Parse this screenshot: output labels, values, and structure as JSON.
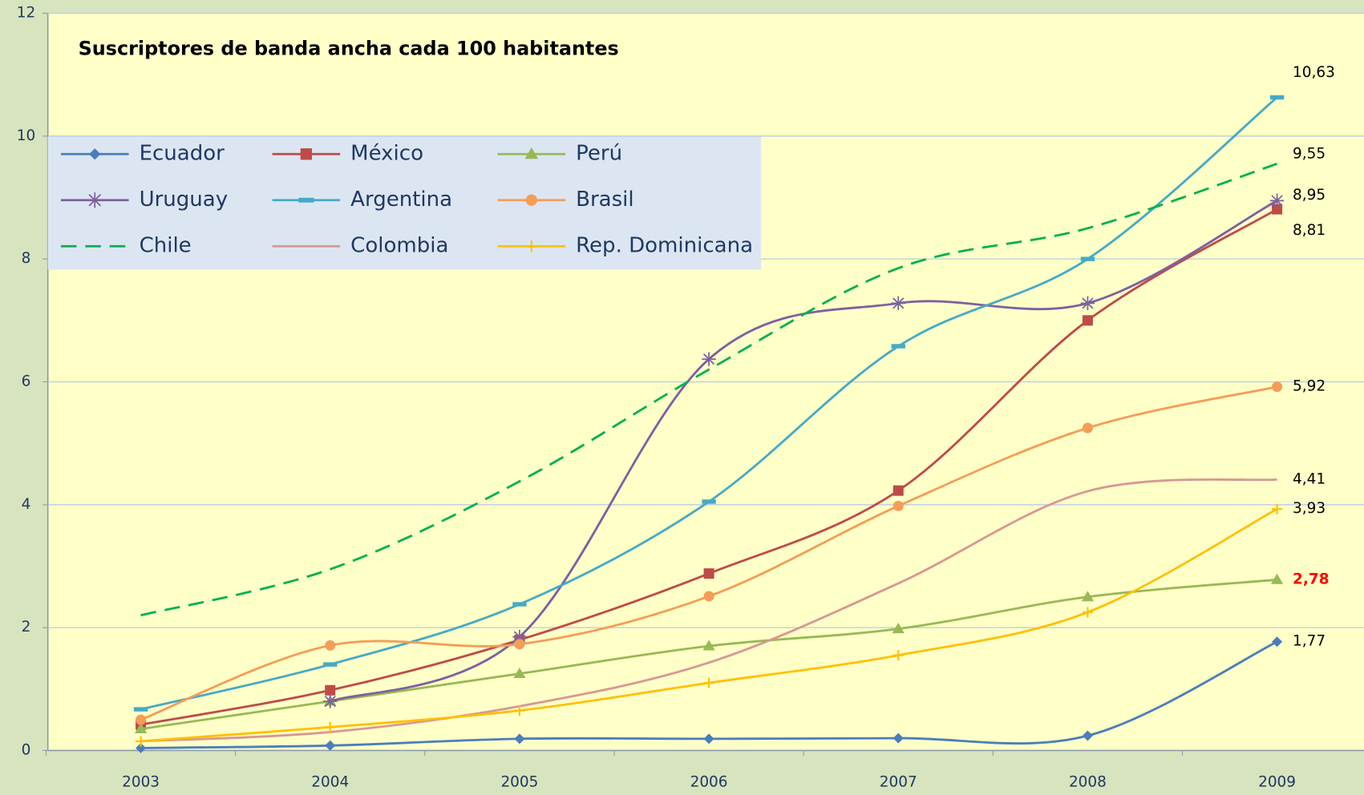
{
  "chart_data": {
    "type": "line",
    "title": "Suscriptores de banda ancha cada 100 habitantes",
    "categories": [
      "2003",
      "2004",
      "2005",
      "2006",
      "2007",
      "2008",
      "2009"
    ],
    "ylim": [
      0,
      12
    ],
    "yticks": [
      0,
      2,
      4,
      6,
      8,
      10,
      12
    ],
    "grid": true,
    "smooth": true,
    "legend": "upper left",
    "series": [
      {
        "name": "Ecuador",
        "color": "#4a7ebb",
        "marker": "diamond",
        "values": [
          0.04,
          0.08,
          0.19,
          0.19,
          0.2,
          0.24,
          1.77
        ],
        "value_labels": [
          null,
          null,
          null,
          null,
          null,
          null,
          "1,77"
        ]
      },
      {
        "name": "México",
        "color": "#be4b48",
        "marker": "square",
        "values": [
          0.42,
          0.98,
          1.8,
          2.88,
          4.23,
          7.0,
          8.81
        ],
        "value_labels": [
          null,
          null,
          null,
          null,
          null,
          null,
          "8,81"
        ]
      },
      {
        "name": "Perú",
        "color": "#98b954",
        "marker": "triangle",
        "values": [
          0.35,
          0.8,
          1.25,
          1.7,
          1.98,
          2.5,
          2.78
        ],
        "value_labels": [
          null,
          null,
          null,
          null,
          null,
          null,
          "2,78"
        ],
        "label_color": "#ff0000"
      },
      {
        "name": "Uruguay",
        "color": "#7d60a0",
        "marker": "star",
        "values": [
          null,
          0.8,
          1.85,
          6.37,
          7.28,
          7.28,
          8.95
        ],
        "value_labels": [
          null,
          null,
          null,
          null,
          null,
          null,
          "8,95"
        ]
      },
      {
        "name": "Argentina",
        "color": "#46aac5",
        "marker": "dash",
        "values": [
          0.67,
          1.4,
          2.38,
          4.05,
          6.58,
          8.0,
          10.63
        ],
        "value_labels": [
          null,
          null,
          null,
          null,
          null,
          null,
          "10,63"
        ]
      },
      {
        "name": "Brasil",
        "color": "#f59d56",
        "marker": "circle",
        "values": [
          0.5,
          1.71,
          1.73,
          2.51,
          3.98,
          5.25,
          5.92
        ],
        "value_labels": [
          null,
          null,
          null,
          null,
          null,
          null,
          "5,92"
        ]
      },
      {
        "name": "Chile",
        "color": "#00b050",
        "marker": "none",
        "dashed": true,
        "values": [
          2.2,
          2.95,
          4.38,
          6.2,
          7.85,
          8.5,
          9.55
        ],
        "value_labels": [
          null,
          null,
          null,
          null,
          null,
          null,
          "9,55"
        ]
      },
      {
        "name": "Colombia",
        "color": "#d99694",
        "marker": "none",
        "values": [
          0.15,
          0.3,
          0.72,
          1.43,
          2.72,
          4.22,
          4.41
        ],
        "value_labels": [
          null,
          null,
          null,
          null,
          null,
          null,
          "4,41"
        ]
      },
      {
        "name": "Rep. Dominicana",
        "color": "#ffc000",
        "marker": "plus",
        "values": [
          0.15,
          0.38,
          0.65,
          1.1,
          1.55,
          2.25,
          3.93
        ],
        "value_labels": [
          null,
          null,
          null,
          null,
          null,
          null,
          "3,93"
        ]
      }
    ]
  }
}
